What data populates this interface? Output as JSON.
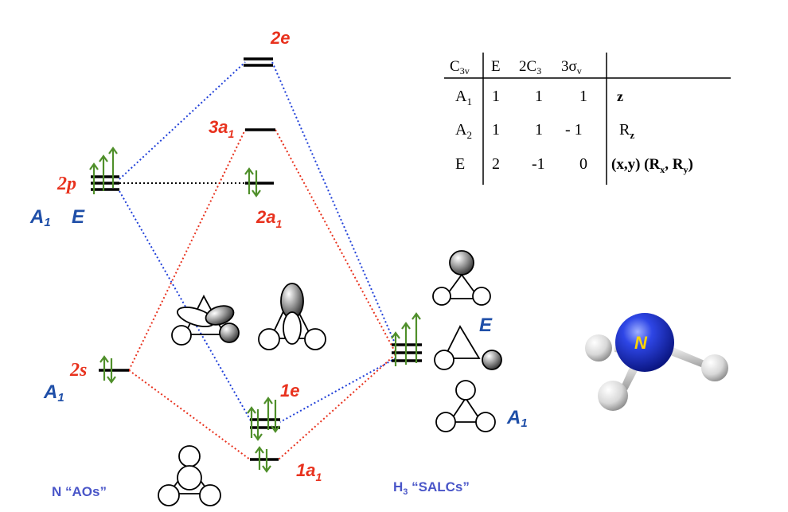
{
  "mo_levels": {
    "2e": "2e",
    "3a1": "3a",
    "3a1_sub": "1",
    "2a1": "2a",
    "2a1_sub": "1",
    "1e": "1e",
    "1a1": "1a",
    "1a1_sub": "1"
  },
  "n_aos": {
    "2p": "2p",
    "2s": "2s",
    "sym_2p_a": "A",
    "sym_2p_a_sub": "1",
    "sym_2p_e": "E",
    "sym_2s": "A",
    "sym_2s_sub": "1",
    "caption": "N “AOs”"
  },
  "h3_salcs": {
    "sym_e": "E",
    "sym_a": "A",
    "sym_a_sub": "1",
    "caption_pre": "H",
    "caption_sub": "3",
    "caption_post": " “SALCs”"
  },
  "molecule": {
    "atom_label": "N"
  },
  "char_table": {
    "group": "C",
    "group_sub": "3v",
    "headers": [
      "E",
      "2C",
      "3σ"
    ],
    "header_subs": [
      "",
      "3",
      "v"
    ],
    "rows": [
      {
        "irrep": "A",
        "irrep_sub": "1",
        "chars": [
          "1",
          "1",
          "1"
        ],
        "basis": "z"
      },
      {
        "irrep": "A",
        "irrep_sub": "2",
        "chars": [
          "1",
          "1",
          "- 1"
        ],
        "basis": "R",
        "basis_sub": "z"
      },
      {
        "irrep": "E",
        "irrep_sub": "",
        "chars": [
          "2",
          "-1",
          "0"
        ],
        "basis": "(x,y) (R",
        "basis_sub": "x",
        "basis_mid": ", R",
        "basis_sub2": "y",
        "basis_end": ")"
      }
    ]
  },
  "colors": {
    "level_line": "#000000",
    "electron_arrow": "#4f8f2a",
    "red_dotted": "#e8321e",
    "blue_dotted": "#1f3fd8",
    "black_dotted": "#000000",
    "red_label": "#e8321e",
    "blue_label": "#1f4fa8",
    "nitrogen_sphere": "#1a2fd0",
    "hydrogen_sphere": "#e8e8e8"
  }
}
